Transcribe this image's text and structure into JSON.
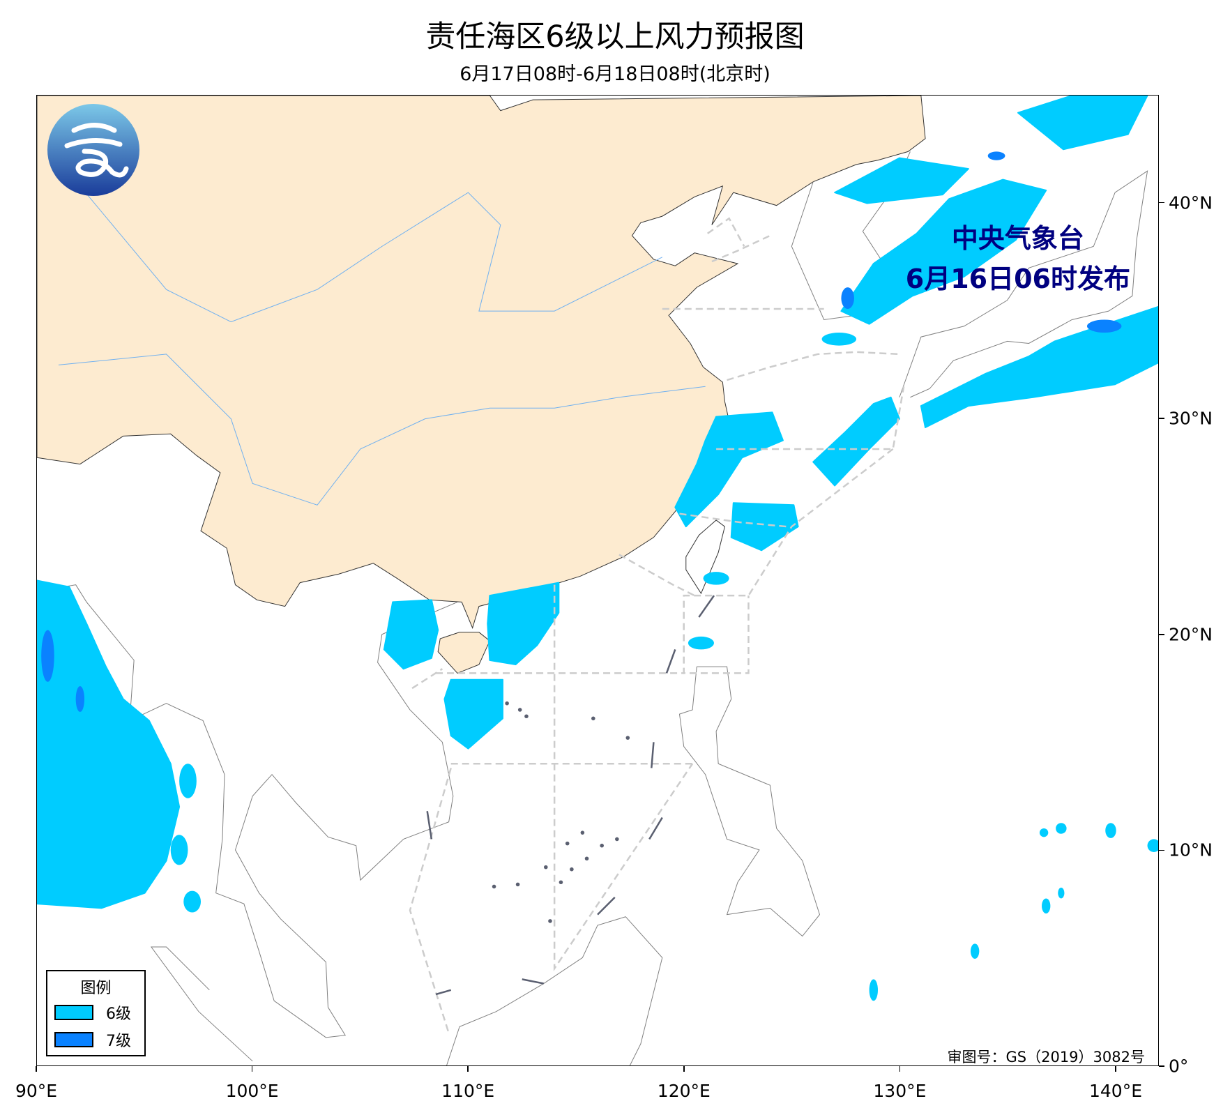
{
  "title": "责任海区6级以上风力预报图",
  "subtitle": "6月17日08时-6月18日08时(北京时)",
  "agency": {
    "name": "中央气象台",
    "issued": "6月16日06时发布"
  },
  "legend": {
    "title": "图例",
    "items": [
      {
        "label": "6级",
        "color": "#00CCFF"
      },
      {
        "label": "7级",
        "color": "#0A82FF"
      }
    ]
  },
  "review_number": "审图号：GS（2019）3082号",
  "axes": {
    "lon_labels": [
      "90°E",
      "100°E",
      "110°E",
      "120°E",
      "130°E",
      "140°E"
    ],
    "lat_labels": [
      "0°",
      "10°N",
      "20°N",
      "30°N",
      "40°N"
    ],
    "lon_range": [
      90,
      142
    ],
    "lat_range": [
      0,
      45
    ]
  },
  "colors": {
    "china_land": "#FDEBD0",
    "coastline": "#808080",
    "sea_boundary": "#CCCCCC",
    "agency_text": "#000080",
    "river": "#6FB0F0"
  }
}
